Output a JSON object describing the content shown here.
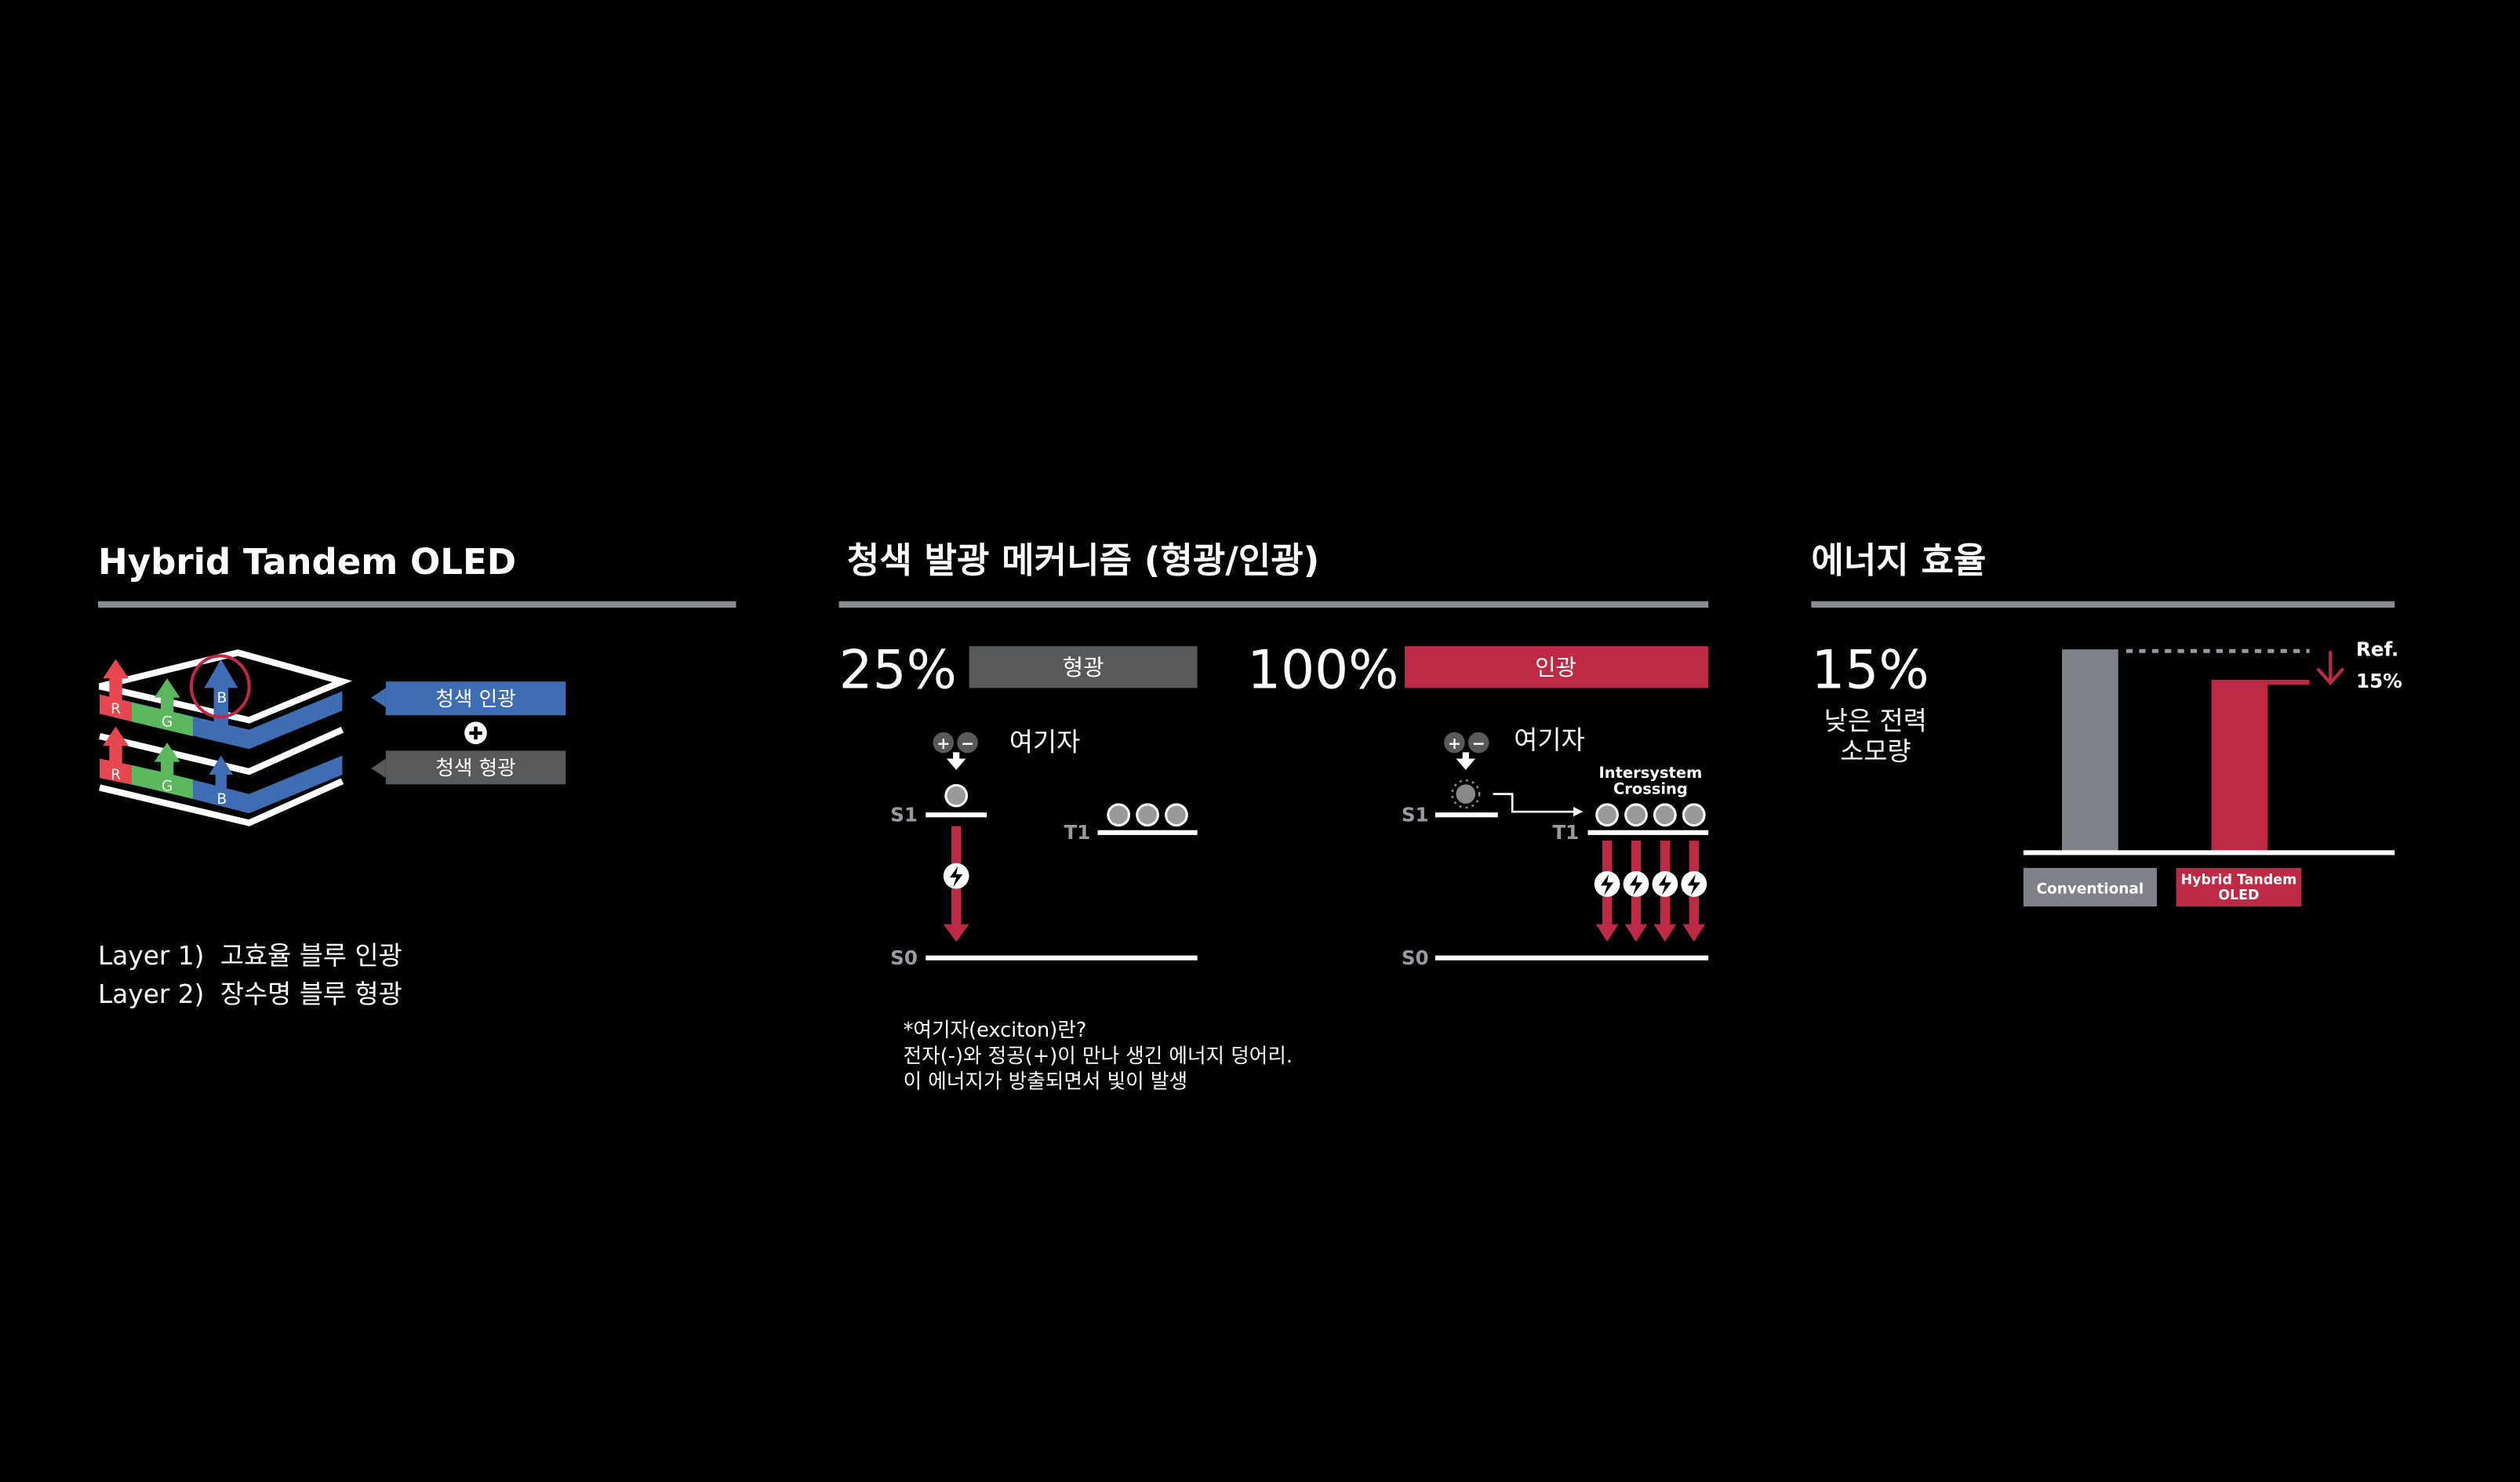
{
  "colors": {
    "background": "#000000",
    "blue": "#3f6db4",
    "gray_box": "#58595b",
    "red": "#be2946",
    "green": "#5cb85c",
    "red_layer": "#e8474f",
    "rule": "#8c8d91",
    "conventional_bar": "#808289"
  },
  "panel1": {
    "title": "Hybrid Tandem OLED",
    "label_top": "청색 인광",
    "label_bottom": "청색 형광",
    "plus_icon": "plus-circle-icon",
    "layer_letters": [
      "R",
      "G",
      "B"
    ],
    "layers": [
      {
        "prefix": "Layer 1)",
        "text": "고효율 블루 인광"
      },
      {
        "prefix": "Layer 2)",
        "text": "장수명 블루 형광"
      }
    ]
  },
  "panel2": {
    "title": "청색 발광 메커니즘 (형광/인광)",
    "fluorescence": {
      "percent": "25%",
      "label": "형광",
      "exciton_label": "여기자",
      "s1": "S1",
      "t1": "T1",
      "s0": "S0"
    },
    "phosphorescence": {
      "percent": "100%",
      "label": "인광",
      "exciton_label": "여기자",
      "s1": "S1",
      "t1": "T1",
      "s0": "S0",
      "crossing_line1": "Intersystem",
      "crossing_line2": "Crossing"
    },
    "footnote": [
      "*여기자(exciton)란?",
      "전자(-)와 정공(+)이 만나 생긴 에너지 덩어리.",
      "이 에너지가 방출되면서 빛이 발생"
    ]
  },
  "panel3": {
    "title": "에너지 효율",
    "headline": "15%",
    "sub_line1": "낮은 전력",
    "sub_line2": "소모량",
    "chart_data": {
      "type": "bar",
      "categories": [
        "Conventional",
        "Hybrid Tandem OLED"
      ],
      "category_lines": [
        [
          "Conventional"
        ],
        [
          "Hybrid Tandem",
          "OLED"
        ]
      ],
      "values": [
        100,
        85
      ],
      "ylim": [
        0,
        100
      ],
      "colors": [
        "#808289",
        "#be2946"
      ],
      "annotation_ref": "Ref.",
      "annotation_delta": "15%",
      "grid": false
    }
  }
}
